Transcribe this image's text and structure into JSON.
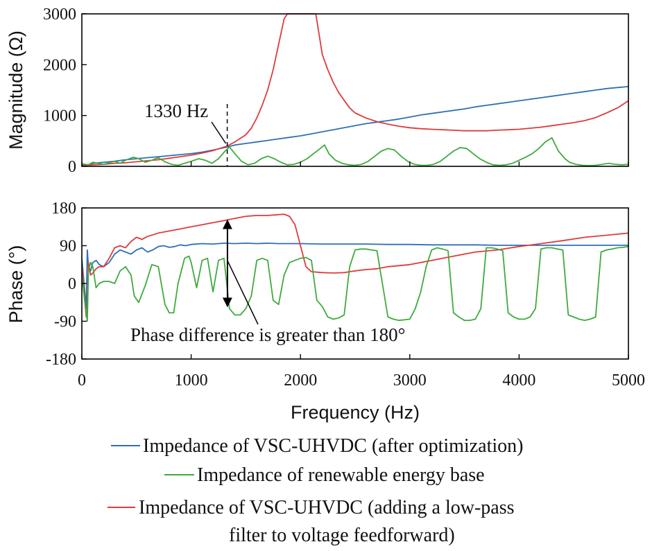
{
  "chart_data": {
    "type": "line",
    "x_axis": {
      "label": "Frequency (Hz)",
      "range": [
        0,
        5000
      ],
      "ticks": [
        0,
        1000,
        2000,
        3000,
        4000,
        5000
      ],
      "tick_labels": [
        "0",
        "1000",
        "2000",
        "3000",
        "4000",
        "5000"
      ]
    },
    "panels": [
      {
        "id": "magnitude",
        "ylabel": "Magnitude (Ω)",
        "ylim": [
          0,
          3000
        ],
        "yticks": [
          0,
          1000,
          2000,
          3000
        ],
        "ytick_labels": [
          "0",
          "1000",
          "2000",
          "3000"
        ],
        "annotations": [
          {
            "id": "freq-marker",
            "text": "1330 Hz",
            "x": 1330
          }
        ],
        "series": [
          {
            "name": "Impedance of VSC-UHVDC (after optimization)",
            "color": "#2e6fb5",
            "x": [
              0,
              30,
              60,
              100,
              150,
              200,
              300,
              400,
              500,
              600,
              700,
              800,
              900,
              1000,
              1100,
              1200,
              1330,
              1400,
              1500,
              1600,
              1700,
              1800,
              1900,
              2000,
              2100,
              2200,
              2300,
              2400,
              2500,
              2600,
              2700,
              2800,
              2900,
              3000,
              3100,
              3200,
              3300,
              3400,
              3500,
              3600,
              3700,
              3800,
              3900,
              4000,
              4100,
              4200,
              4300,
              4400,
              4500,
              4600,
              4700,
              4800,
              4900,
              5000
            ],
            "y": [
              30,
              40,
              30,
              60,
              70,
              80,
              100,
              130,
              150,
              170,
              190,
              210,
              230,
              250,
              280,
              320,
              380,
              420,
              450,
              480,
              510,
              540,
              570,
              600,
              640,
              680,
              720,
              760,
              800,
              840,
              870,
              900,
              930,
              970,
              1010,
              1040,
              1070,
              1100,
              1130,
              1170,
              1200,
              1230,
              1260,
              1290,
              1320,
              1350,
              1380,
              1410,
              1440,
              1470,
              1500,
              1530,
              1550,
              1570
            ]
          },
          {
            "name": "Impedance of VSC-UHVDC (adding a low-pass filter to voltage feedforward)",
            "color": "#e03a3a",
            "x": [
              0,
              50,
              100,
              200,
              300,
              400,
              500,
              600,
              700,
              800,
              900,
              1000,
              1100,
              1200,
              1330,
              1400,
              1500,
              1550,
              1600,
              1650,
              1700,
              1750,
              1800,
              1850,
              1880,
              2140,
              2170,
              2200,
              2250,
              2300,
              2350,
              2400,
              2450,
              2500,
              2600,
              2700,
              2800,
              2900,
              3000,
              3100,
              3200,
              3300,
              3400,
              3500,
              3600,
              3700,
              3800,
              3900,
              4000,
              4100,
              4200,
              4300,
              4400,
              4500,
              4600,
              4700,
              4800,
              4900,
              5000
            ],
            "y": [
              20,
              20,
              30,
              40,
              60,
              70,
              90,
              110,
              130,
              160,
              190,
              220,
              260,
              310,
              400,
              480,
              620,
              750,
              950,
              1200,
              1500,
              1900,
              2400,
              2900,
              3000,
              3000,
              2600,
              2200,
              1900,
              1650,
              1450,
              1300,
              1150,
              1050,
              950,
              880,
              830,
              790,
              760,
              740,
              730,
              720,
              710,
              700,
              700,
              700,
              710,
              720,
              730,
              750,
              770,
              800,
              830,
              860,
              900,
              960,
              1050,
              1150,
              1290
            ]
          },
          {
            "name": "Impedance of renewable energy base",
            "color": "#3daa3d",
            "x": [
              0,
              30,
              60,
              100,
              150,
              200,
              250,
              300,
              350,
              400,
              470,
              520,
              580,
              640,
              700,
              760,
              820,
              880,
              940,
              1000,
              1070,
              1130,
              1190,
              1250,
              1310,
              1350,
              1400,
              1460,
              1520,
              1580,
              1640,
              1700,
              1760,
              1820,
              1880,
              1940,
              2000,
              2060,
              2120,
              2180,
              2220,
              2260,
              2320,
              2380,
              2440,
              2500,
              2560,
              2620,
              2680,
              2740,
              2800,
              2860,
              2920,
              2980,
              3040,
              3100,
              3160,
              3220,
              3280,
              3340,
              3400,
              3460,
              3520,
              3580,
              3640,
              3700,
              3760,
              3820,
              3880,
              3940,
              4000,
              4060,
              4120,
              4180,
              4240,
              4300,
              4360,
              4420,
              4460,
              4520,
              4580,
              4640,
              4700,
              4760,
              4820,
              4880,
              4940,
              5000
            ],
            "y": [
              50,
              40,
              30,
              80,
              60,
              40,
              70,
              100,
              60,
              120,
              180,
              150,
              80,
              120,
              170,
              90,
              40,
              20,
              60,
              100,
              150,
              120,
              60,
              150,
              300,
              380,
              250,
              100,
              30,
              60,
              150,
              200,
              150,
              80,
              30,
              40,
              80,
              150,
              250,
              350,
              420,
              250,
              120,
              60,
              30,
              20,
              40,
              100,
              200,
              300,
              350,
              320,
              200,
              100,
              40,
              20,
              20,
              40,
              100,
              200,
              300,
              370,
              350,
              250,
              150,
              80,
              30,
              20,
              30,
              60,
              120,
              180,
              250,
              350,
              480,
              560,
              300,
              150,
              80,
              40,
              20,
              15,
              20,
              40,
              60,
              40,
              30,
              40
            ]
          }
        ]
      },
      {
        "id": "phase",
        "ylabel": "Phase (°)",
        "ylim": [
          -180,
          180
        ],
        "yticks": [
          -180,
          -90,
          0,
          90,
          180
        ],
        "ytick_labels": [
          "-180",
          "-90",
          "0",
          "90",
          "180"
        ],
        "annotations": [
          {
            "id": "phase-diff",
            "text": "Phase difference is greater than 180°",
            "x": 1370
          }
        ],
        "series": [
          {
            "name": "Impedance of VSC-UHVDC (after optimization)",
            "color": "#2e6fb5",
            "x": [
              0,
              20,
              40,
              50,
              60,
              80,
              100,
              130,
              160,
              200,
              250,
              300,
              350,
              400,
              450,
              500,
              550,
              600,
              650,
              700,
              750,
              800,
              850,
              900,
              950,
              1000,
              1100,
              1200,
              1300,
              1400,
              1500,
              1600,
              1700,
              1800,
              1900,
              2000,
              2200,
              2400,
              2600,
              2800,
              3000,
              3200,
              3400,
              3600,
              3800,
              4000,
              4200,
              4400,
              4600,
              4800,
              5000
            ],
            "y": [
              60,
              0,
              -60,
              80,
              40,
              30,
              50,
              55,
              45,
              40,
              50,
              70,
              80,
              75,
              70,
              80,
              85,
              75,
              80,
              88,
              90,
              86,
              88,
              92,
              90,
              93,
              95,
              94,
              96,
              95,
              96,
              95,
              96,
              95,
              95,
              95,
              94,
              94,
              94,
              93,
              93,
              92,
              92,
              92,
              91,
              91,
              91,
              91,
              91,
              91,
              91
            ]
          },
          {
            "name": "Impedance of VSC-UHVDC (adding a low-pass filter to voltage feedforward)",
            "color": "#e03a3a",
            "x": [
              0,
              20,
              40,
              50,
              60,
              80,
              100,
              130,
              160,
              200,
              250,
              300,
              350,
              400,
              450,
              500,
              550,
              600,
              700,
              800,
              900,
              1000,
              1100,
              1200,
              1300,
              1400,
              1500,
              1600,
              1700,
              1800,
              1850,
              1900,
              1950,
              2000,
              2050,
              2100,
              2200,
              2300,
              2400,
              2500,
              2600,
              2700,
              2800,
              3000,
              3200,
              3400,
              3600,
              3800,
              4000,
              4200,
              4400,
              4600,
              4800,
              5000
            ],
            "y": [
              40,
              -20,
              -80,
              -60,
              50,
              20,
              25,
              35,
              40,
              40,
              60,
              85,
              90,
              85,
              100,
              110,
              105,
              112,
              120,
              125,
              130,
              135,
              140,
              145,
              150,
              155,
              160,
              162,
              162,
              164,
              165,
              160,
              140,
              90,
              40,
              28,
              26,
              25,
              26,
              30,
              33,
              35,
              40,
              45,
              55,
              65,
              75,
              80,
              88,
              95,
              102,
              110,
              115,
              120
            ]
          },
          {
            "name": "Impedance of renewable energy base",
            "color": "#3daa3d",
            "x": [
              0,
              30,
              50,
              60,
              80,
              100,
              130,
              160,
              200,
              250,
              300,
              350,
              400,
              450,
              480,
              520,
              580,
              640,
              700,
              760,
              800,
              840,
              880,
              940,
              980,
              1000,
              1050,
              1100,
              1150,
              1200,
              1250,
              1300,
              1350,
              1400,
              1450,
              1500,
              1550,
              1600,
              1650,
              1700,
              1750,
              1800,
              1850,
              1900,
              2000,
              2050,
              2100,
              2150,
              2200,
              2250,
              2300,
              2350,
              2400,
              2450,
              2500,
              2550,
              2600,
              2650,
              2700,
              2800,
              2850,
              2900,
              3000,
              3050,
              3100,
              3150,
              3200,
              3250,
              3300,
              3350,
              3400,
              3450,
              3500,
              3550,
              3600,
              3650,
              3700,
              3750,
              3800,
              3850,
              3900,
              3950,
              4000,
              4050,
              4100,
              4150,
              4200,
              4250,
              4300,
              4350,
              4400,
              4450,
              4500,
              4550,
              4600,
              4650,
              4700,
              4750,
              4800,
              4850,
              4900,
              4950,
              5000
            ],
            "y": [
              20,
              -50,
              -90,
              30,
              50,
              40,
              -10,
              0,
              5,
              5,
              0,
              30,
              40,
              20,
              -30,
              -45,
              -5,
              45,
              40,
              -50,
              -70,
              -70,
              0,
              60,
              65,
              50,
              -10,
              55,
              60,
              -20,
              55,
              60,
              -60,
              -75,
              -75,
              -60,
              -30,
              55,
              60,
              55,
              -40,
              -50,
              20,
              50,
              60,
              62,
              55,
              -40,
              -55,
              -80,
              -85,
              -82,
              -75,
              40,
              80,
              82,
              82,
              80,
              78,
              -80,
              -85,
              -88,
              -85,
              -60,
              -20,
              40,
              80,
              85,
              82,
              78,
              -70,
              -80,
              -88,
              -88,
              -85,
              -60,
              85,
              85,
              82,
              78,
              -70,
              -80,
              -85,
              -85,
              -80,
              -60,
              82,
              85,
              85,
              82,
              80,
              -75,
              -80,
              -85,
              -88,
              -85,
              -80,
              75,
              80,
              82,
              85,
              86,
              88
            ]
          }
        ]
      }
    ],
    "legend": {
      "placement": "bottom",
      "items": [
        {
          "series": "Impedance of VSC-UHVDC (after optimization)",
          "lines": [
            "Impedance of VSC-UHVDC (after optimization)"
          ],
          "color": "#2e6fb5"
        },
        {
          "series": "Impedance of renewable energy base",
          "lines": [
            "Impedance of renewable energy base"
          ],
          "color": "#3daa3d"
        },
        {
          "series": "Impedance of VSC-UHVDC (adding a low-pass filter to voltage feedforward)",
          "lines": [
            "Impedance of VSC-UHVDC (adding a low-pass",
            "filter to voltage feedforward)"
          ],
          "color": "#e03a3a"
        }
      ]
    }
  }
}
